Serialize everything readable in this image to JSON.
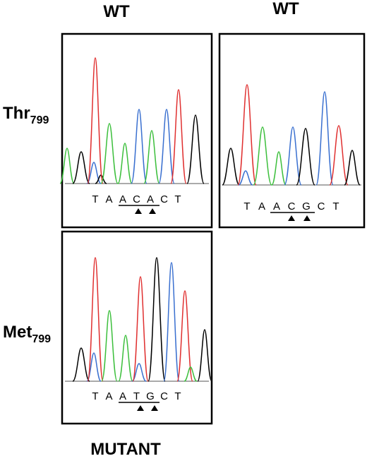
{
  "column_labels": [
    "WT",
    "WT"
  ],
  "row_labels": [
    {
      "name": "Thr",
      "subscript": "799"
    },
    {
      "name": "Met",
      "subscript": "799"
    }
  ],
  "footer": "MUTANT",
  "panels": [
    {
      "sequence": [
        "T",
        "A",
        "A",
        "C",
        "A",
        "C",
        "T"
      ]
    },
    {
      "sequence": [
        "T",
        "A",
        "A",
        "C",
        "G",
        "C",
        "T"
      ]
    },
    {
      "sequence": [
        "T",
        "A",
        "A",
        "T",
        "G",
        "C",
        "T"
      ]
    }
  ]
}
